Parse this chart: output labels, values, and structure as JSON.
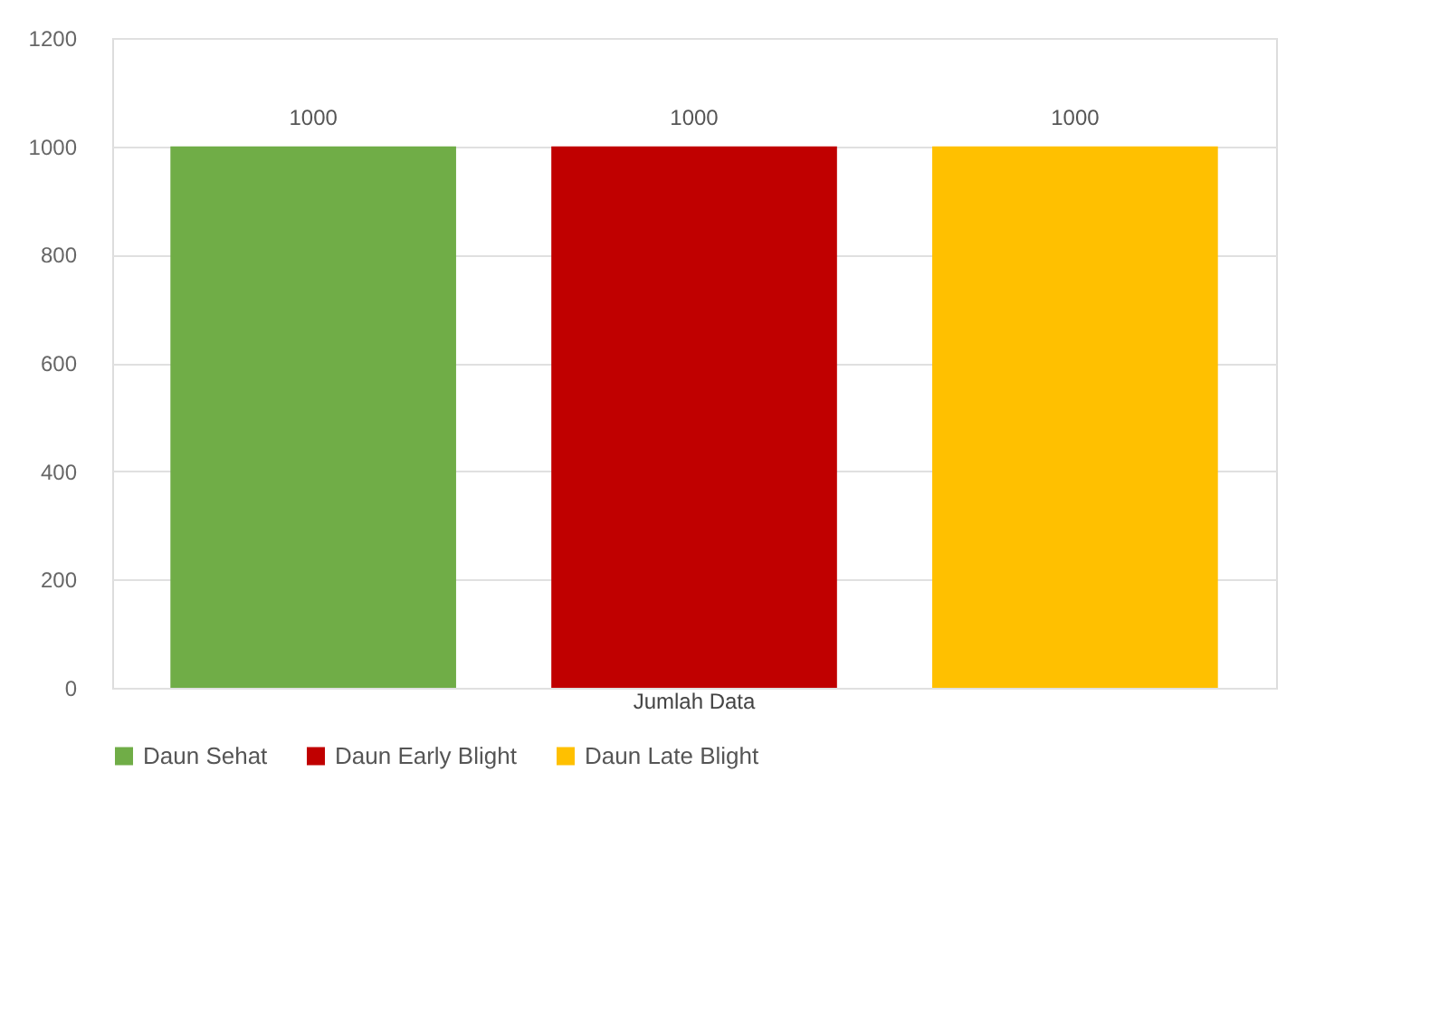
{
  "chart_data": {
    "type": "bar",
    "categories": [
      "Jumlah Data"
    ],
    "series": [
      {
        "name": "Daun Sehat",
        "color": "#70ad47",
        "values": [
          1000
        ]
      },
      {
        "name": "Daun Early Blight",
        "color": "#c00000",
        "values": [
          1000
        ]
      },
      {
        "name": "Daun Late Blight",
        "color": "#ffc000",
        "values": [
          1000
        ]
      }
    ],
    "ylim": [
      0,
      1200
    ],
    "yticks": [
      0,
      200,
      400,
      600,
      800,
      1000,
      1200
    ],
    "grid": "y",
    "legend": "bottom",
    "data_labels": true
  }
}
